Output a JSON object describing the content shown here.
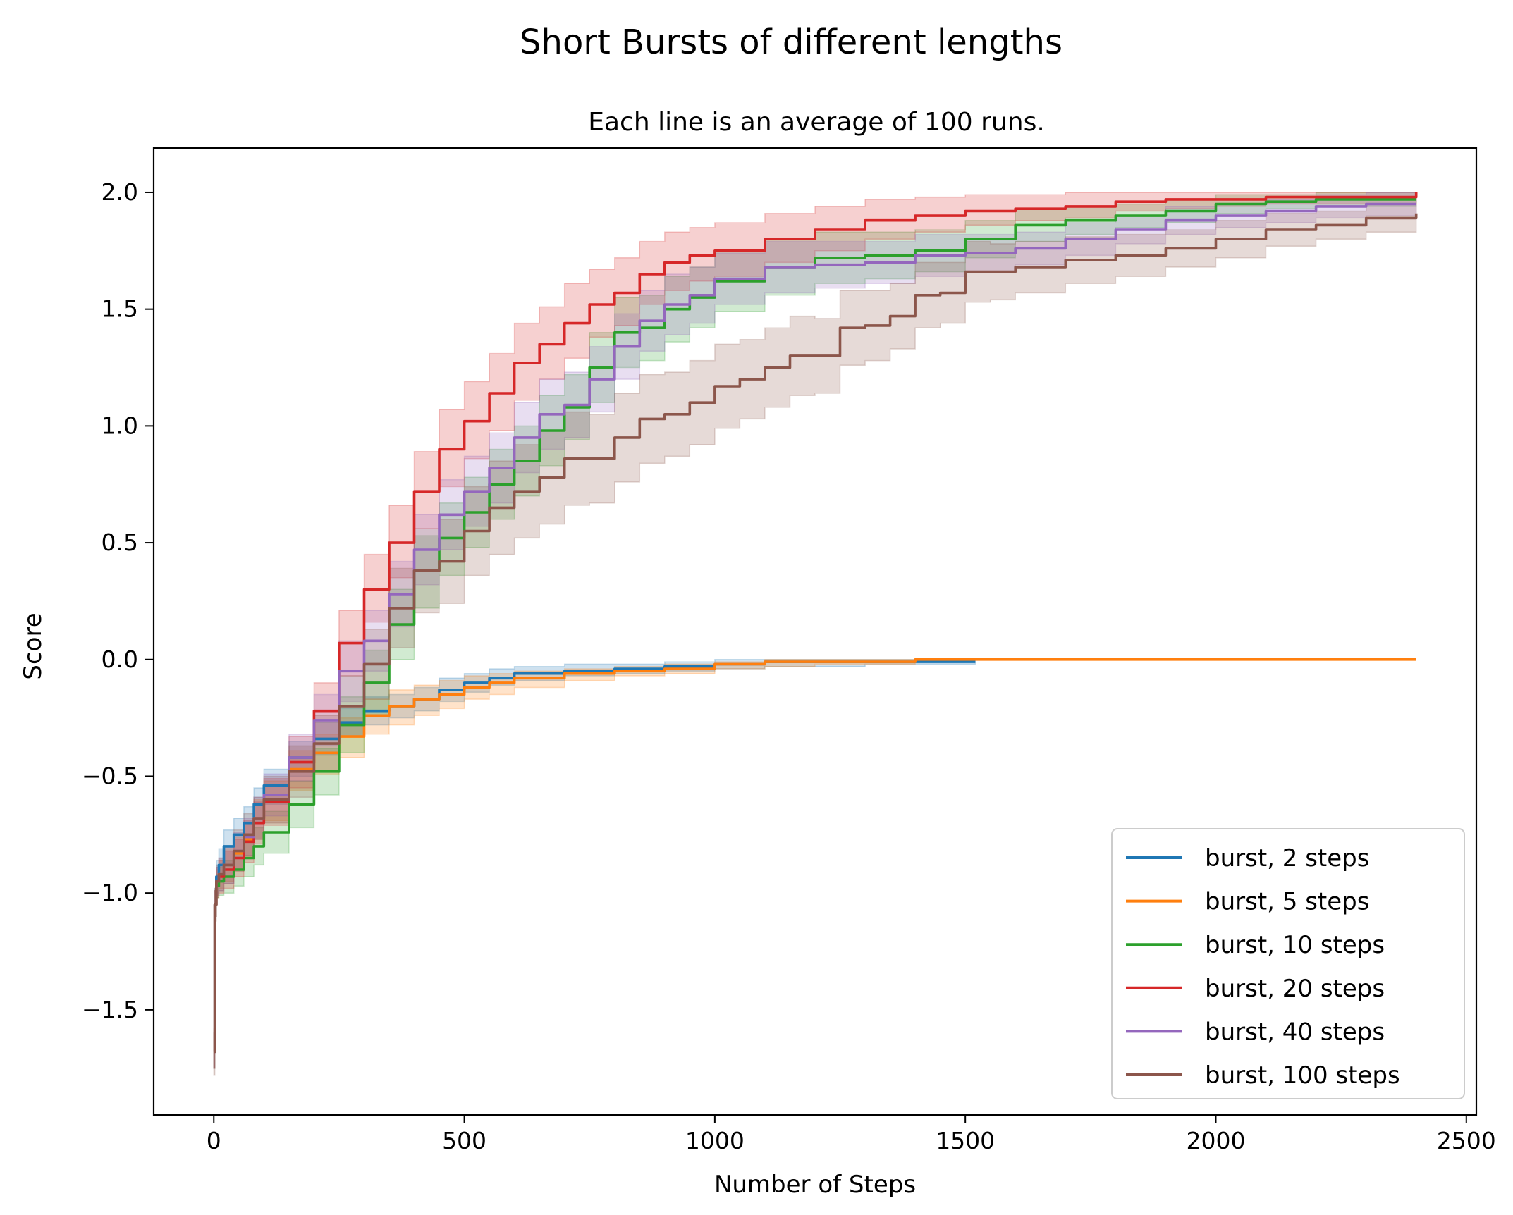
{
  "chart_data": {
    "type": "line",
    "title": "Short Bursts of different lengths",
    "subtitle": "Each line is an average of 100 runs.",
    "xlabel": "Number of Steps",
    "ylabel": "Score",
    "xlim": [
      -120,
      2520
    ],
    "ylim": [
      -1.95,
      2.19
    ],
    "xticks": [
      0,
      500,
      1000,
      1500,
      2000,
      2500
    ],
    "xtick_labels": [
      "0",
      "500",
      "1000",
      "1500",
      "2000",
      "2500"
    ],
    "yticks": [
      -1.5,
      -1.0,
      -0.5,
      0.0,
      0.5,
      1.0,
      1.5,
      2.0
    ],
    "ytick_labels": [
      "−1.5",
      "−1.0",
      "−0.5",
      "0.0",
      "0.5",
      "1.0",
      "1.5",
      "2.0"
    ],
    "grid": false,
    "legend_position": "lower-right",
    "band_opacity": 0.22,
    "series": [
      {
        "name": "burst, 2 steps",
        "color": "#1f77b4",
        "x": [
          0,
          2,
          5,
          10,
          20,
          40,
          60,
          80,
          100,
          150,
          200,
          250,
          300,
          350,
          400,
          450,
          500,
          550,
          600,
          700,
          800,
          900,
          1000,
          1100,
          1200,
          1300,
          1400,
          1500,
          1520
        ],
        "y": [
          -1.68,
          -1.05,
          -0.93,
          -0.88,
          -0.8,
          -0.75,
          -0.7,
          -0.62,
          -0.54,
          -0.42,
          -0.34,
          -0.27,
          -0.22,
          -0.2,
          -0.17,
          -0.13,
          -0.1,
          -0.08,
          -0.06,
          -0.05,
          -0.04,
          -0.03,
          -0.02,
          -0.01,
          -0.01,
          -0.01,
          -0.01,
          -0.01,
          -0.01
        ],
        "lower": [
          -1.75,
          -1.1,
          -1.0,
          -0.95,
          -0.88,
          -0.82,
          -0.77,
          -0.7,
          -0.62,
          -0.5,
          -0.41,
          -0.33,
          -0.28,
          -0.25,
          -0.22,
          -0.18,
          -0.14,
          -0.11,
          -0.09,
          -0.07,
          -0.06,
          -0.05,
          -0.04,
          -0.03,
          -0.03,
          -0.02,
          -0.02,
          -0.02,
          -0.02
        ],
        "upper": [
          -1.6,
          -0.98,
          -0.86,
          -0.81,
          -0.73,
          -0.68,
          -0.63,
          -0.55,
          -0.47,
          -0.35,
          -0.27,
          -0.21,
          -0.16,
          -0.15,
          -0.12,
          -0.08,
          -0.06,
          -0.04,
          -0.03,
          -0.02,
          -0.02,
          -0.01,
          0.0,
          0.0,
          0.0,
          0.0,
          0.0,
          0.0,
          0.0
        ]
      },
      {
        "name": "burst, 5 steps",
        "color": "#ff7f0e",
        "x": [
          0,
          2,
          5,
          10,
          20,
          40,
          60,
          80,
          100,
          150,
          200,
          250,
          300,
          350,
          400,
          450,
          500,
          550,
          600,
          700,
          800,
          900,
          1000,
          1100,
          1200,
          1300,
          1400,
          1500,
          1600,
          2000,
          2400
        ],
        "y": [
          -1.68,
          -1.05,
          -0.96,
          -0.92,
          -0.88,
          -0.83,
          -0.77,
          -0.68,
          -0.6,
          -0.47,
          -0.4,
          -0.33,
          -0.24,
          -0.2,
          -0.17,
          -0.15,
          -0.12,
          -0.1,
          -0.08,
          -0.06,
          -0.05,
          -0.04,
          -0.02,
          -0.01,
          -0.01,
          -0.01,
          0.0,
          0.0,
          0.0,
          0.0,
          0.0
        ],
        "lower": [
          -1.75,
          -1.1,
          -1.02,
          -0.98,
          -0.95,
          -0.9,
          -0.85,
          -0.77,
          -0.69,
          -0.56,
          -0.49,
          -0.42,
          -0.32,
          -0.28,
          -0.24,
          -0.21,
          -0.17,
          -0.15,
          -0.12,
          -0.09,
          -0.07,
          -0.06,
          -0.04,
          -0.03,
          -0.02,
          -0.02,
          -0.01,
          0.0,
          0.0,
          0.0,
          0.0
        ],
        "upper": [
          -1.6,
          -0.99,
          -0.9,
          -0.86,
          -0.81,
          -0.76,
          -0.7,
          -0.6,
          -0.52,
          -0.39,
          -0.32,
          -0.25,
          -0.17,
          -0.13,
          -0.11,
          -0.09,
          -0.07,
          -0.06,
          -0.05,
          -0.04,
          -0.03,
          -0.02,
          -0.01,
          0.0,
          0.0,
          0.0,
          0.0,
          0.0,
          0.0,
          0.0,
          0.0
        ]
      },
      {
        "name": "burst, 10 steps",
        "color": "#2ca02c",
        "x": [
          0,
          2,
          5,
          10,
          20,
          40,
          60,
          80,
          100,
          150,
          200,
          250,
          300,
          350,
          400,
          450,
          500,
          550,
          600,
          650,
          700,
          750,
          800,
          850,
          900,
          950,
          1000,
          1100,
          1200,
          1300,
          1400,
          1500,
          1600,
          1700,
          1800,
          1900,
          2000,
          2100,
          2200,
          2300,
          2400
        ],
        "y": [
          -1.68,
          -1.05,
          -0.97,
          -0.95,
          -0.93,
          -0.9,
          -0.85,
          -0.8,
          -0.74,
          -0.62,
          -0.48,
          -0.28,
          -0.1,
          0.15,
          0.38,
          0.52,
          0.63,
          0.75,
          0.85,
          0.98,
          1.08,
          1.25,
          1.4,
          1.42,
          1.5,
          1.55,
          1.62,
          1.68,
          1.72,
          1.73,
          1.75,
          1.8,
          1.86,
          1.88,
          1.9,
          1.92,
          1.95,
          1.96,
          1.97,
          1.97,
          1.97
        ],
        "lower": [
          -1.75,
          -1.1,
          -1.02,
          -1.01,
          -1.0,
          -0.97,
          -0.93,
          -0.88,
          -0.83,
          -0.72,
          -0.58,
          -0.4,
          -0.24,
          0.0,
          0.22,
          0.36,
          0.48,
          0.6,
          0.7,
          0.83,
          0.94,
          1.1,
          1.25,
          1.28,
          1.36,
          1.42,
          1.49,
          1.56,
          1.61,
          1.63,
          1.66,
          1.72,
          1.79,
          1.82,
          1.85,
          1.87,
          1.91,
          1.93,
          1.94,
          1.94,
          1.94
        ],
        "upper": [
          -1.6,
          -0.99,
          -0.92,
          -0.89,
          -0.86,
          -0.83,
          -0.77,
          -0.72,
          -0.65,
          -0.52,
          -0.38,
          -0.16,
          0.04,
          0.3,
          0.53,
          0.67,
          0.78,
          0.9,
          1.0,
          1.13,
          1.22,
          1.4,
          1.55,
          1.56,
          1.64,
          1.68,
          1.75,
          1.8,
          1.83,
          1.83,
          1.84,
          1.88,
          1.93,
          1.94,
          1.95,
          1.97,
          1.99,
          1.99,
          2.0,
          2.0,
          2.0
        ]
      },
      {
        "name": "burst, 20 steps",
        "color": "#d62728",
        "x": [
          0,
          2,
          5,
          10,
          20,
          40,
          60,
          80,
          100,
          150,
          200,
          250,
          300,
          350,
          400,
          450,
          500,
          550,
          600,
          650,
          700,
          750,
          800,
          850,
          900,
          950,
          1000,
          1100,
          1200,
          1300,
          1400,
          1500,
          1600,
          1700,
          1800,
          1900,
          2000,
          2100,
          2200,
          2300,
          2400
        ],
        "y": [
          -1.68,
          -1.05,
          -0.95,
          -0.93,
          -0.9,
          -0.85,
          -0.78,
          -0.7,
          -0.61,
          -0.44,
          -0.22,
          0.07,
          0.3,
          0.5,
          0.72,
          0.9,
          1.02,
          1.14,
          1.27,
          1.35,
          1.44,
          1.52,
          1.57,
          1.65,
          1.7,
          1.73,
          1.75,
          1.8,
          1.84,
          1.88,
          1.9,
          1.92,
          1.93,
          1.94,
          1.96,
          1.97,
          1.97,
          1.98,
          1.98,
          1.98,
          2.0
        ],
        "lower": [
          -1.75,
          -1.1,
          -1.01,
          -1.0,
          -0.98,
          -0.93,
          -0.87,
          -0.79,
          -0.71,
          -0.55,
          -0.34,
          -0.07,
          0.16,
          0.35,
          0.56,
          0.74,
          0.86,
          0.98,
          1.11,
          1.2,
          1.29,
          1.38,
          1.43,
          1.52,
          1.58,
          1.62,
          1.64,
          1.7,
          1.75,
          1.8,
          1.83,
          1.86,
          1.88,
          1.89,
          1.92,
          1.93,
          1.94,
          1.95,
          1.95,
          1.95,
          1.97
        ],
        "upper": [
          -1.6,
          -0.99,
          -0.89,
          -0.86,
          -0.82,
          -0.77,
          -0.69,
          -0.61,
          -0.51,
          -0.33,
          -0.1,
          0.21,
          0.45,
          0.66,
          0.89,
          1.07,
          1.19,
          1.31,
          1.44,
          1.51,
          1.61,
          1.67,
          1.72,
          1.79,
          1.83,
          1.85,
          1.87,
          1.91,
          1.94,
          1.97,
          1.98,
          1.99,
          1.99,
          2.0,
          2.0,
          2.0,
          2.0,
          2.0,
          2.0,
          2.0,
          2.0
        ]
      },
      {
        "name": "burst, 40 steps",
        "color": "#9467bd",
        "x": [
          0,
          2,
          5,
          10,
          20,
          40,
          60,
          80,
          100,
          150,
          200,
          250,
          300,
          350,
          400,
          450,
          500,
          550,
          600,
          650,
          700,
          750,
          800,
          850,
          900,
          950,
          1000,
          1100,
          1200,
          1300,
          1400,
          1500,
          1600,
          1700,
          1800,
          1900,
          2000,
          2100,
          2200,
          2300,
          2400
        ],
        "y": [
          -1.68,
          -1.05,
          -0.95,
          -0.92,
          -0.88,
          -0.82,
          -0.76,
          -0.68,
          -0.58,
          -0.42,
          -0.26,
          -0.05,
          0.08,
          0.28,
          0.47,
          0.62,
          0.72,
          0.82,
          0.95,
          1.05,
          1.09,
          1.2,
          1.34,
          1.45,
          1.52,
          1.56,
          1.63,
          1.68,
          1.69,
          1.7,
          1.73,
          1.74,
          1.76,
          1.8,
          1.84,
          1.88,
          1.9,
          1.92,
          1.94,
          1.95,
          1.95
        ],
        "lower": [
          -1.75,
          -1.1,
          -1.01,
          -0.99,
          -0.96,
          -0.9,
          -0.84,
          -0.77,
          -0.67,
          -0.52,
          -0.37,
          -0.18,
          -0.05,
          0.14,
          0.32,
          0.47,
          0.57,
          0.67,
          0.8,
          0.9,
          0.95,
          1.06,
          1.2,
          1.32,
          1.39,
          1.44,
          1.52,
          1.57,
          1.59,
          1.61,
          1.64,
          1.66,
          1.69,
          1.73,
          1.78,
          1.82,
          1.85,
          1.87,
          1.89,
          1.9,
          1.9
        ],
        "upper": [
          -1.6,
          -0.99,
          -0.89,
          -0.85,
          -0.8,
          -0.74,
          -0.68,
          -0.59,
          -0.49,
          -0.32,
          -0.15,
          0.08,
          0.21,
          0.42,
          0.62,
          0.77,
          0.87,
          0.97,
          1.1,
          1.2,
          1.23,
          1.34,
          1.48,
          1.58,
          1.65,
          1.68,
          1.74,
          1.79,
          1.79,
          1.79,
          1.82,
          1.82,
          1.83,
          1.87,
          1.9,
          1.94,
          1.95,
          1.97,
          1.99,
          2.0,
          2.0
        ]
      },
      {
        "name": "burst, 100 steps",
        "color": "#8c564b",
        "x": [
          0,
          2,
          5,
          10,
          20,
          40,
          60,
          80,
          100,
          150,
          200,
          250,
          300,
          350,
          400,
          450,
          500,
          550,
          600,
          650,
          700,
          750,
          800,
          850,
          900,
          950,
          1000,
          1050,
          1100,
          1150,
          1200,
          1250,
          1300,
          1350,
          1400,
          1450,
          1500,
          1550,
          1600,
          1700,
          1800,
          1900,
          2000,
          2100,
          2200,
          2300,
          2400
        ],
        "y": [
          -1.68,
          -1.05,
          -0.95,
          -0.92,
          -0.88,
          -0.82,
          -0.75,
          -0.68,
          -0.6,
          -0.48,
          -0.36,
          -0.2,
          -0.02,
          0.22,
          0.38,
          0.42,
          0.55,
          0.65,
          0.72,
          0.78,
          0.86,
          0.86,
          0.95,
          1.03,
          1.05,
          1.1,
          1.17,
          1.2,
          1.25,
          1.3,
          1.3,
          1.42,
          1.43,
          1.47,
          1.56,
          1.57,
          1.66,
          1.66,
          1.68,
          1.71,
          1.73,
          1.76,
          1.8,
          1.84,
          1.86,
          1.89,
          1.91
        ],
        "lower": [
          -1.78,
          -1.12,
          -1.02,
          -0.99,
          -0.96,
          -0.91,
          -0.84,
          -0.77,
          -0.7,
          -0.59,
          -0.48,
          -0.33,
          -0.17,
          0.05,
          0.2,
          0.24,
          0.36,
          0.45,
          0.52,
          0.58,
          0.66,
          0.67,
          0.76,
          0.84,
          0.87,
          0.92,
          0.99,
          1.03,
          1.08,
          1.13,
          1.14,
          1.26,
          1.28,
          1.33,
          1.42,
          1.44,
          1.53,
          1.54,
          1.57,
          1.61,
          1.64,
          1.68,
          1.72,
          1.77,
          1.8,
          1.83,
          1.85
        ],
        "upper": [
          -1.58,
          -0.98,
          -0.88,
          -0.85,
          -0.8,
          -0.73,
          -0.66,
          -0.59,
          -0.5,
          -0.37,
          -0.24,
          -0.07,
          0.13,
          0.39,
          0.56,
          0.6,
          0.74,
          0.85,
          0.92,
          0.98,
          1.06,
          1.05,
          1.14,
          1.22,
          1.23,
          1.28,
          1.35,
          1.37,
          1.42,
          1.47,
          1.46,
          1.58,
          1.58,
          1.61,
          1.7,
          1.7,
          1.79,
          1.78,
          1.79,
          1.81,
          1.82,
          1.84,
          1.88,
          1.91,
          1.92,
          1.95,
          1.97
        ]
      }
    ]
  }
}
